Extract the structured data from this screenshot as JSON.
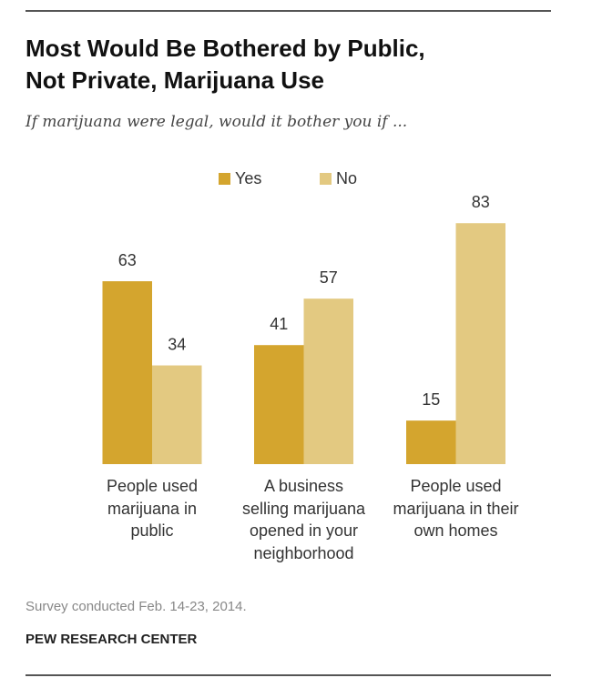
{
  "title_lines": [
    "Most Would Be Bothered by Public,",
    "Not Private, Marijuana Use"
  ],
  "subtitle": "If marijuana were legal, would it bother you if ...",
  "note": "Survey conducted Feb. 14-23, 2014.",
  "source": "PEW RESEARCH CENTER",
  "chart_data": {
    "type": "bar",
    "title": "Most Would Be Bothered by Public, Not Private, Marijuana Use",
    "subtitle": "If marijuana were legal, would it bother you if ...",
    "categories": [
      "People used marijuana in public",
      "A business selling marijuana opened in your neighborhood",
      "People used marijuana in their own homes"
    ],
    "category_lines": [
      [
        "People used",
        "marijuana in",
        "public"
      ],
      [
        "A business",
        "selling marijuana",
        "opened in your",
        "neighborhood"
      ],
      [
        "People used",
        "marijuana in their",
        "own homes"
      ]
    ],
    "series": [
      {
        "name": "Yes",
        "values": [
          63,
          41,
          15
        ],
        "color": "#d4a52e"
      },
      {
        "name": "No",
        "values": [
          34,
          57,
          83
        ],
        "color": "#e3c981"
      }
    ],
    "ylim": [
      0,
      100
    ],
    "grid": false,
    "legend": "top-center",
    "data_labels": true
  }
}
